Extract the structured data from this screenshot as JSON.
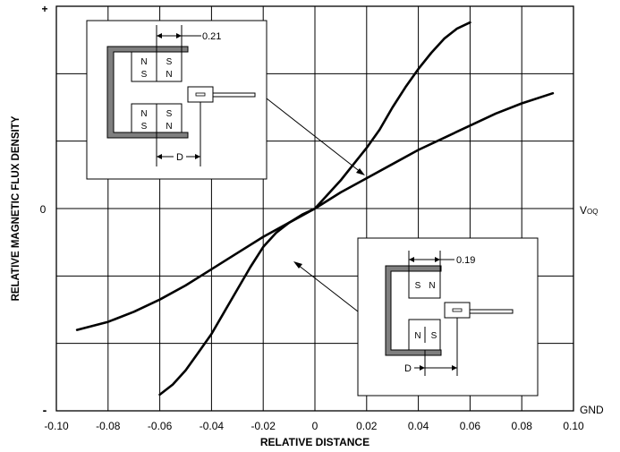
{
  "chart_data": {
    "type": "line",
    "xlabel": "RELATIVE DISTANCE",
    "ylabel": "RELATIVE MAGNETIC FLUX DENSITY",
    "xlim": [
      -0.1,
      0.1
    ],
    "ylim": [
      -1,
      1
    ],
    "x_ticks": [
      "-0.10",
      "-0.08",
      "-0.06",
      "-0.04",
      "-0.02",
      "0",
      "0.02",
      "0.04",
      "0.06",
      "0.08",
      "0.10"
    ],
    "y_ticks": {
      "top": "+",
      "middle": "0",
      "bottom": "-"
    },
    "right_labels": {
      "voq": "V",
      "voq_sub": "OQ",
      "gnd": "GND"
    },
    "grid": true,
    "series": [
      {
        "x": [
          -0.06,
          -0.055,
          -0.05,
          -0.045,
          -0.04,
          -0.035,
          -0.03,
          -0.025,
          -0.02,
          -0.015,
          -0.01,
          -0.005,
          0,
          0.005,
          0.01,
          0.015,
          0.02,
          0.025,
          0.03,
          0.035,
          0.04,
          0.045,
          0.05,
          0.055,
          0.06
        ],
        "y": [
          -0.92,
          -0.87,
          -0.8,
          -0.71,
          -0.62,
          -0.51,
          -0.4,
          -0.29,
          -0.19,
          -0.12,
          -0.07,
          -0.03,
          0,
          0.07,
          0.14,
          0.22,
          0.3,
          0.39,
          0.5,
          0.6,
          0.69,
          0.77,
          0.84,
          0.89,
          0.92
        ]
      },
      {
        "x": [
          -0.092,
          -0.08,
          -0.07,
          -0.06,
          -0.05,
          -0.04,
          -0.03,
          -0.02,
          -0.01,
          0,
          0.01,
          0.02,
          0.03,
          0.04,
          0.05,
          0.06,
          0.07,
          0.08,
          0.092
        ],
        "y": [
          -0.6,
          -0.56,
          -0.51,
          -0.45,
          -0.38,
          -0.3,
          -0.22,
          -0.14,
          -0.07,
          0,
          0.08,
          0.15,
          0.22,
          0.29,
          0.35,
          0.41,
          0.47,
          0.52,
          0.57
        ]
      }
    ],
    "insets": [
      {
        "gap_label": "0.21",
        "d_label": "D",
        "magnets": [
          {
            "left": [
              "N",
              "S"
            ],
            "right": [
              "S",
              "N"
            ]
          },
          {
            "left": [
              "N",
              "S"
            ],
            "right": [
              "S",
              "N"
            ]
          }
        ]
      },
      {
        "gap_label": "0.19",
        "d_label": "D",
        "magnets": [
          {
            "left": [
              "S"
            ],
            "right": [
              "N"
            ]
          },
          {
            "left": [
              "N"
            ],
            "right": [
              "S"
            ]
          }
        ]
      }
    ]
  }
}
